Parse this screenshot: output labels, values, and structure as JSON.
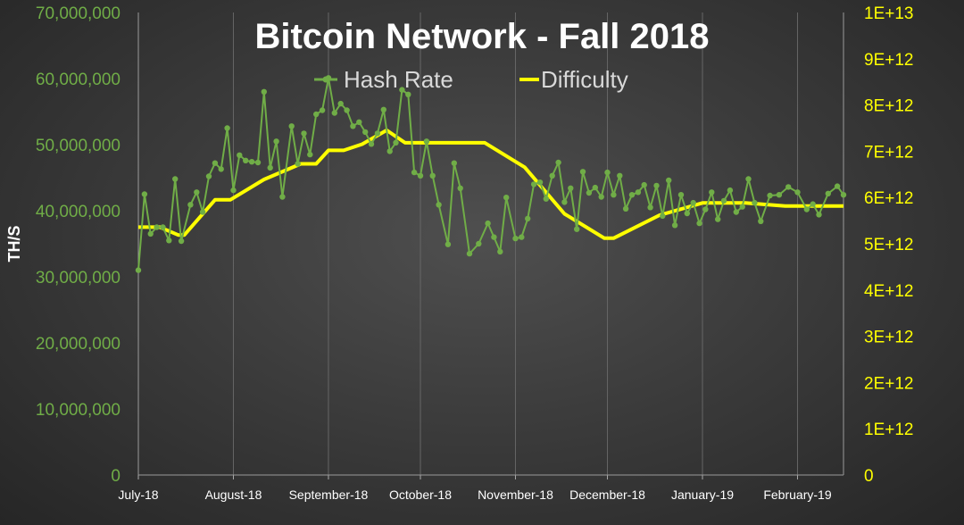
{
  "chart_data": {
    "type": "line",
    "title": "Bitcoin Network - Fall 2018",
    "ylabel": "TH/S",
    "y2label": "",
    "xlim": [
      "2018-07-01",
      "2019-02-16"
    ],
    "ylim": [
      0,
      70000000
    ],
    "y2lim": [
      0,
      10000000000000
    ],
    "x_ticks": [
      {
        "label": "July-18",
        "date": "2018-07-01"
      },
      {
        "label": "August-18",
        "date": "2018-08-01"
      },
      {
        "label": "September-18",
        "date": "2018-09-01"
      },
      {
        "label": "October-18",
        "date": "2018-10-01"
      },
      {
        "label": "November-18",
        "date": "2018-11-01"
      },
      {
        "label": "December-18",
        "date": "2018-12-01"
      },
      {
        "label": "January-19",
        "date": "2019-01-01"
      },
      {
        "label": "February-19",
        "date": "2019-02-01"
      }
    ],
    "y_ticks": [
      {
        "value": 0,
        "label": "0"
      },
      {
        "value": 10000000,
        "label": "10,000,000"
      },
      {
        "value": 20000000,
        "label": "20,000,000"
      },
      {
        "value": 30000000,
        "label": "30,000,000"
      },
      {
        "value": 40000000,
        "label": "40,000,000"
      },
      {
        "value": 50000000,
        "label": "50,000,000"
      },
      {
        "value": 60000000,
        "label": "60,000,000"
      },
      {
        "value": 70000000,
        "label": "70,000,000"
      }
    ],
    "y2_ticks": [
      {
        "value": 0,
        "label": "0"
      },
      {
        "value": 1000000000000,
        "label": "1E+12"
      },
      {
        "value": 2000000000000,
        "label": "2E+12"
      },
      {
        "value": 3000000000000,
        "label": "3E+12"
      },
      {
        "value": 4000000000000,
        "label": "4E+12"
      },
      {
        "value": 5000000000000,
        "label": "5E+12"
      },
      {
        "value": 6000000000000,
        "label": "6E+12"
      },
      {
        "value": 7000000000000,
        "label": "7E+12"
      },
      {
        "value": 8000000000000,
        "label": "8E+12"
      },
      {
        "value": 9000000000000,
        "label": "9E+12"
      },
      {
        "value": 10000000000000,
        "label": "1E+13"
      }
    ],
    "grid": true,
    "legend": "top-center",
    "colors": {
      "hash_rate": "#70ad47",
      "difficulty": "#ffff00",
      "title": "#ffffff",
      "left_axis": "#70ad47",
      "right_axis": "#ffff00",
      "grid": "#666666"
    },
    "series": [
      {
        "name": "Hash Rate",
        "axis": "left",
        "marker": "circle",
        "x": [
          "2018-07-01",
          "2018-07-03",
          "2018-07-05",
          "2018-07-07",
          "2018-07-09",
          "2018-07-11",
          "2018-07-13",
          "2018-07-15",
          "2018-07-18",
          "2018-07-20",
          "2018-07-22",
          "2018-07-24",
          "2018-07-26",
          "2018-07-28",
          "2018-07-30",
          "2018-08-01",
          "2018-08-03",
          "2018-08-05",
          "2018-08-07",
          "2018-08-09",
          "2018-08-11",
          "2018-08-13",
          "2018-08-15",
          "2018-08-17",
          "2018-08-20",
          "2018-08-22",
          "2018-08-24",
          "2018-08-26",
          "2018-08-28",
          "2018-08-30",
          "2018-09-01",
          "2018-09-03",
          "2018-09-05",
          "2018-09-07",
          "2018-09-09",
          "2018-09-11",
          "2018-09-13",
          "2018-09-15",
          "2018-09-17",
          "2018-09-19",
          "2018-09-21",
          "2018-09-23",
          "2018-09-25",
          "2018-09-27",
          "2018-09-29",
          "2018-10-01",
          "2018-10-03",
          "2018-10-05",
          "2018-10-07",
          "2018-10-10",
          "2018-10-12",
          "2018-10-14",
          "2018-10-17",
          "2018-10-20",
          "2018-10-23",
          "2018-10-25",
          "2018-10-27",
          "2018-10-29",
          "2018-11-01",
          "2018-11-03",
          "2018-11-05",
          "2018-11-07",
          "2018-11-09",
          "2018-11-11",
          "2018-11-13",
          "2018-11-15",
          "2018-11-17",
          "2018-11-19",
          "2018-11-21",
          "2018-11-23",
          "2018-11-25",
          "2018-11-27",
          "2018-11-29",
          "2018-12-01",
          "2018-12-03",
          "2018-12-05",
          "2018-12-07",
          "2018-12-09",
          "2018-12-11",
          "2018-12-13",
          "2018-12-15",
          "2018-12-17",
          "2018-12-19",
          "2018-12-21",
          "2018-12-23",
          "2018-12-25",
          "2018-12-27",
          "2018-12-29",
          "2018-12-31",
          "2019-01-02",
          "2019-01-04",
          "2019-01-06",
          "2019-01-08",
          "2019-01-10",
          "2019-01-12",
          "2019-01-14",
          "2019-01-16",
          "2019-01-18",
          "2019-01-20",
          "2019-01-23",
          "2019-01-26",
          "2019-01-29",
          "2019-02-01",
          "2019-02-04",
          "2019-02-06",
          "2019-02-08",
          "2019-02-11",
          "2019-02-14",
          "2019-02-16"
        ],
        "values": [
          31000000,
          42500000,
          36500000,
          37500000,
          37500000,
          35500000,
          44800000,
          35400000,
          40900000,
          42800000,
          39800000,
          45200000,
          47200000,
          46300000,
          52500000,
          43100000,
          48400000,
          47600000,
          47400000,
          47300000,
          58000000,
          46500000,
          50500000,
          42100000,
          52800000,
          47100000,
          51700000,
          48500000,
          54600000,
          55200000,
          60100000,
          54800000,
          56200000,
          55200000,
          52800000,
          53400000,
          51900000,
          50100000,
          51700000,
          55300000,
          49000000,
          50300000,
          58300000,
          57600000,
          45800000,
          45300000,
          50500000,
          45300000,
          40900000,
          34900000,
          47200000,
          43400000,
          33500000,
          35000000,
          38100000,
          36000000,
          33800000,
          42000000,
          35800000,
          36000000,
          38800000,
          44000000,
          44300000,
          41800000,
          45300000,
          47300000,
          41300000,
          43400000,
          37200000,
          45900000,
          42700000,
          43500000,
          42100000,
          45800000,
          42400000,
          45300000,
          40300000,
          42400000,
          42800000,
          43900000,
          40500000,
          43800000,
          39200000,
          44600000,
          37800000,
          42400000,
          39600000,
          41200000,
          38100000,
          40200000,
          42800000,
          38700000,
          41500000,
          43100000,
          39800000,
          40600000,
          44800000,
          41200000,
          38400000,
          42300000,
          42400000,
          43600000,
          42800000,
          40200000,
          41000000,
          39400000,
          42600000,
          43700000,
          42400000
        ],
        "note_values_after_index_60_are_from_graph": ""
      },
      {
        "name": "Difficulty",
        "axis": "right",
        "marker": "none",
        "step": true,
        "x": [
          "2018-07-01",
          "2018-07-08",
          "2018-07-14",
          "2018-07-16",
          "2018-07-26",
          "2018-07-31",
          "2018-08-11",
          "2018-08-23",
          "2018-08-28",
          "2018-09-01",
          "2018-09-06",
          "2018-09-12",
          "2018-09-20",
          "2018-09-26",
          "2018-10-09",
          "2018-10-22",
          "2018-11-04",
          "2018-11-17",
          "2018-11-30",
          "2018-12-03",
          "2018-12-18",
          "2019-01-01",
          "2019-01-15",
          "2019-01-28",
          "2019-02-16"
        ],
        "values": [
          5360000000000,
          5360000000000,
          5190000000000,
          5190000000000,
          5949000000000,
          5949000000000,
          6390000000000,
          6727000000000,
          6727000000000,
          7019000000000,
          7019000000000,
          7152000000000,
          7454000000000,
          7184000000000,
          7184000000000,
          7184000000000,
          6654000000000,
          5647000000000,
          5120000000000,
          5120000000000,
          5618000000000,
          5883000000000,
          5883000000000,
          5814000000000,
          5814000000000
        ]
      }
    ]
  }
}
